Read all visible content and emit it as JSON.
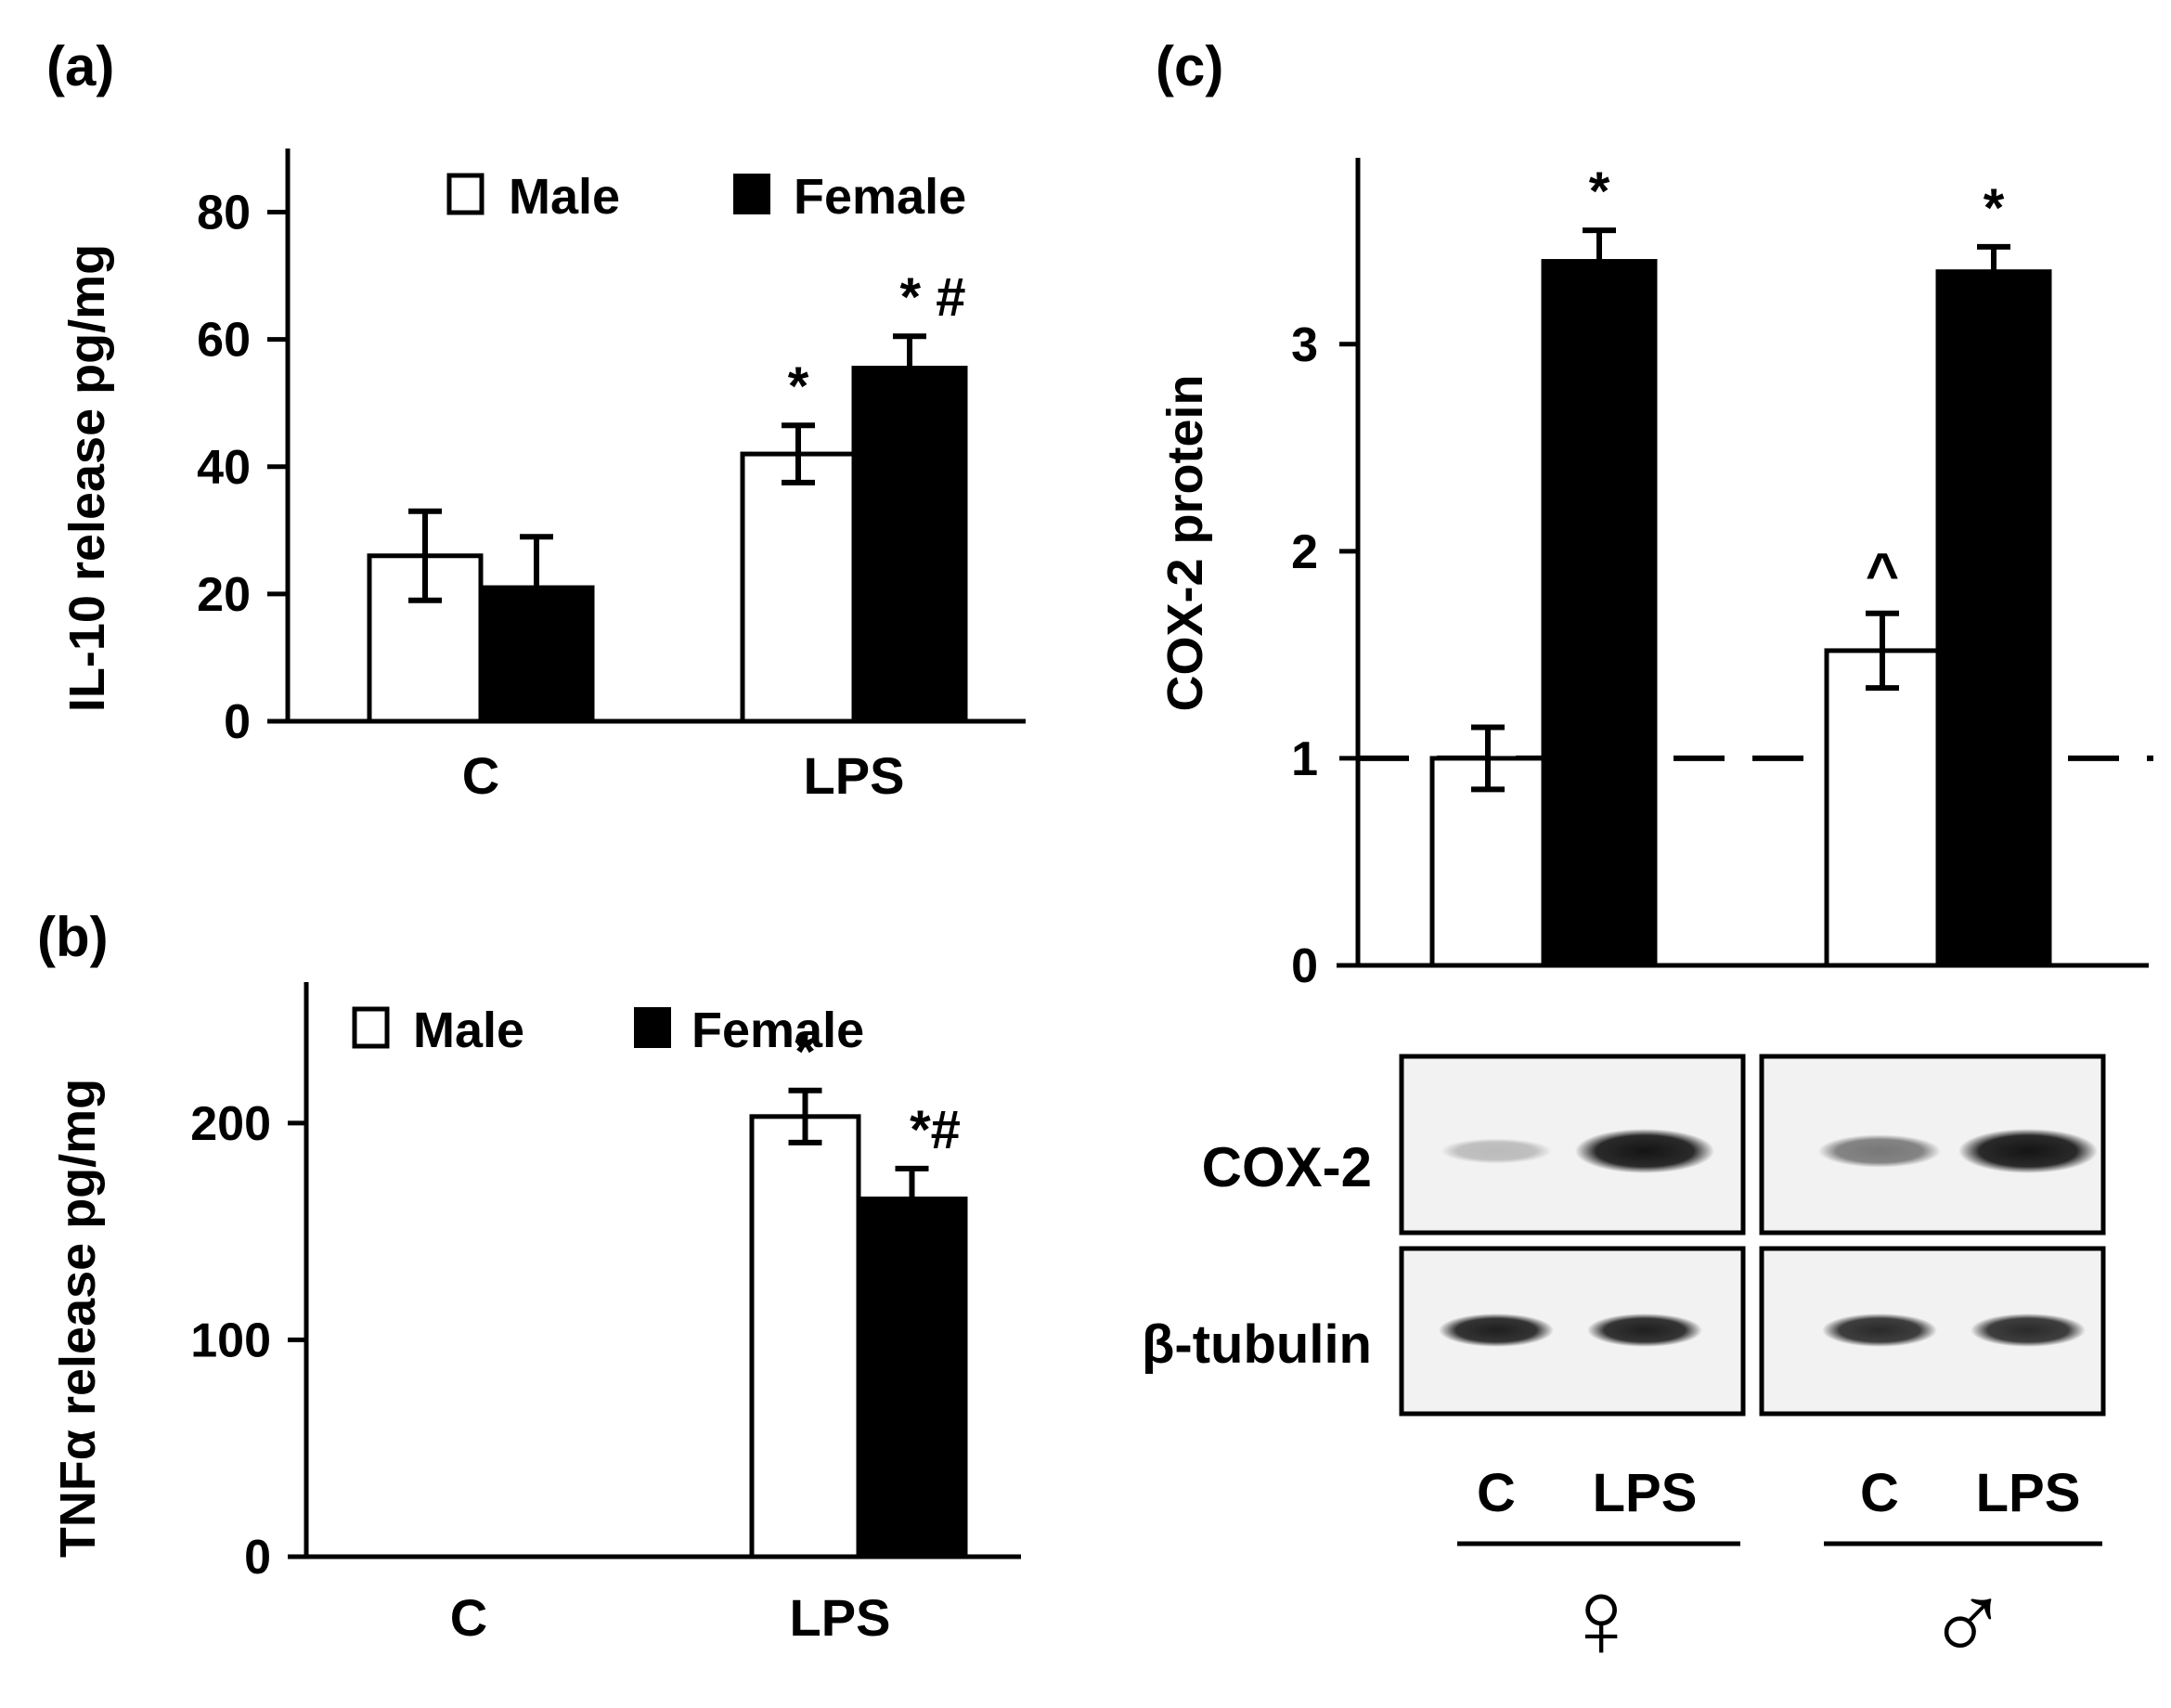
{
  "colors": {
    "male": "#ffffff",
    "female": "#000000",
    "ink": "#000000",
    "blot_bg": "#f2f2f2",
    "band": "#141414"
  },
  "panels": {
    "a": {
      "label": "(a)"
    },
    "b": {
      "label": "(b)"
    },
    "c": {
      "label": "(c)"
    }
  },
  "blot": {
    "rows": [
      "COX-2",
      "β-tubulin"
    ],
    "lane_labels": [
      "C",
      "LPS",
      "C",
      "LPS"
    ],
    "groups": [
      {
        "name": "female",
        "symbol": "♀"
      },
      {
        "name": "male",
        "symbol": "♂"
      }
    ],
    "band_intensity": {
      "cox2": [
        0.25,
        1.0,
        0.55,
        1.0
      ],
      "tubulin": [
        0.95,
        0.95,
        0.9,
        0.9
      ]
    }
  },
  "chart_data": [
    {
      "id": "a",
      "type": "bar",
      "ylabel": "IL-10 release pg/mg",
      "categories": [
        "C",
        "LPS"
      ],
      "ylim": [
        0,
        90
      ],
      "yticks": [
        0,
        20,
        40,
        60,
        80
      ],
      "legend": {
        "position": "top",
        "entries": [
          "Male",
          "Female"
        ]
      },
      "series": [
        {
          "name": "Male",
          "values": [
            26,
            42
          ],
          "errors": [
            7,
            4.5
          ],
          "annotations": [
            "",
            "*"
          ]
        },
        {
          "name": "Female",
          "values": [
            21,
            55.5
          ],
          "errors": [
            8,
            5
          ],
          "annotations": [
            "",
            "* #"
          ]
        }
      ]
    },
    {
      "id": "b",
      "type": "bar",
      "ylabel": "TNFα release pg/mg",
      "categories": [
        "C",
        "LPS"
      ],
      "ylim": [
        0,
        265
      ],
      "yticks": [
        0,
        100,
        200
      ],
      "legend": {
        "position": "top-left",
        "entries": [
          "Male",
          "Female"
        ]
      },
      "series": [
        {
          "name": "Male",
          "values": [
            0,
            203
          ],
          "errors": [
            0,
            12
          ],
          "annotations": [
            "",
            "*"
          ]
        },
        {
          "name": "Female",
          "values": [
            0,
            165
          ],
          "errors": [
            0,
            14
          ],
          "annotations": [
            "",
            "*#"
          ]
        }
      ]
    },
    {
      "id": "c",
      "type": "bar",
      "ylabel": "COX-2 protein",
      "categories": [
        "♀",
        "♂"
      ],
      "ylim": [
        0,
        3.9
      ],
      "yticks": [
        0,
        1,
        2,
        3
      ],
      "reference_line": 1,
      "series": [
        {
          "name": "C",
          "values": [
            1.0,
            1.52
          ],
          "errors": [
            0.15,
            0.18
          ],
          "annotations": [
            "",
            "^"
          ]
        },
        {
          "name": "LPS",
          "values": [
            3.4,
            3.35
          ],
          "errors": [
            0.15,
            0.12
          ],
          "annotations": [
            "*",
            "*"
          ]
        }
      ]
    }
  ]
}
